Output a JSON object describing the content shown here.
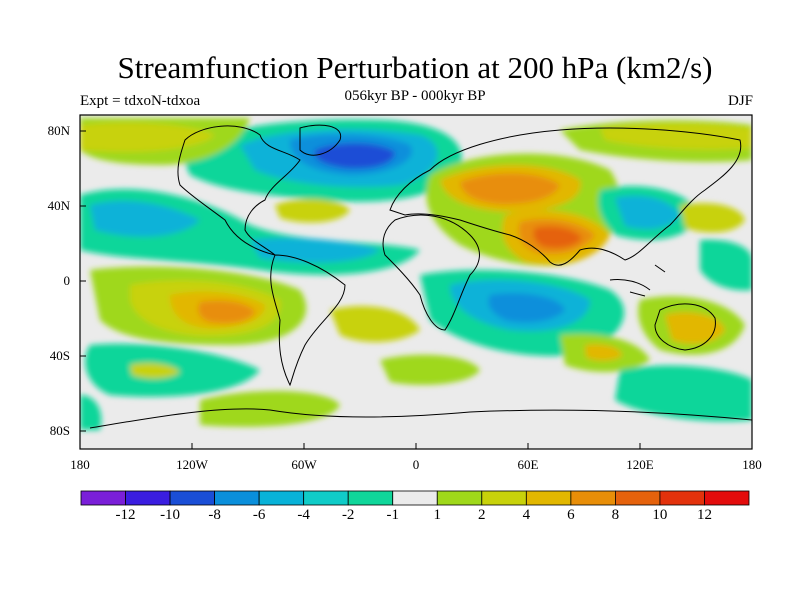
{
  "title": "Streamfunction Perturbation at 200 hPa (km2/s)",
  "subtitle": "056kyr BP - 000kyr BP",
  "left_label": "Expt = tdxoN-tdxoa",
  "right_label": "DJF",
  "lat_ticks": [
    "80N",
    "40N",
    "0",
    "40S",
    "80S"
  ],
  "lon_ticks": [
    "180",
    "120W",
    "60W",
    "0",
    "60E",
    "120E",
    "180"
  ],
  "colorbar": {
    "labels": [
      "-12",
      "-10",
      "-8",
      "-6",
      "-4",
      "-2",
      "-1",
      "1",
      "2",
      "4",
      "6",
      "8",
      "10",
      "12"
    ],
    "colors": [
      "#7a1fd8",
      "#3a1de0",
      "#1a4ed6",
      "#0a8fdb",
      "#08b2d8",
      "#10ccc8",
      "#10d69a",
      "#ebebeb",
      "#9fd81a",
      "#c8d20a",
      "#e2b700",
      "#e88e08",
      "#e5620c",
      "#e3320c",
      "#e30c0c"
    ]
  }
}
